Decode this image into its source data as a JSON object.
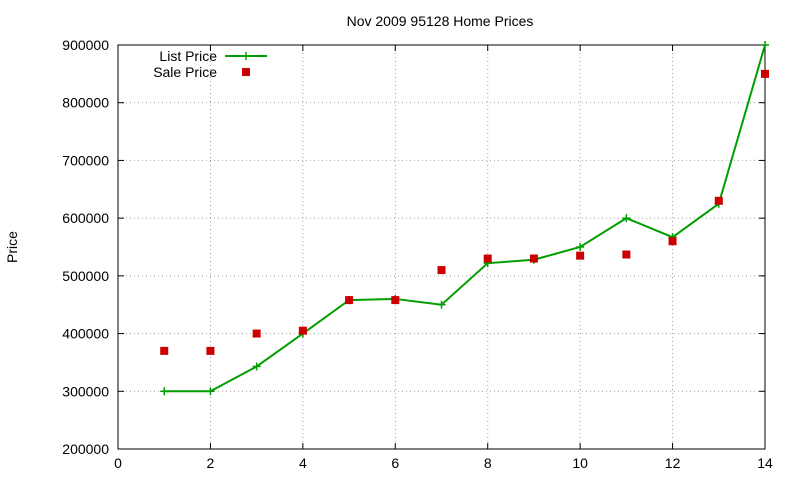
{
  "chart_data": {
    "type": "line",
    "title": "Nov 2009 95128 Home Prices",
    "xlabel": "",
    "ylabel": "Price",
    "xlim": [
      0,
      14
    ],
    "ylim": [
      200000,
      900000
    ],
    "xticks": [
      0,
      2,
      4,
      6,
      8,
      10,
      12,
      14
    ],
    "yticks": [
      200000,
      300000,
      400000,
      500000,
      600000,
      700000,
      800000,
      900000
    ],
    "grid": true,
    "legend_position": "top-left",
    "series": [
      {
        "name": "List Price",
        "style": "line-with-plus-markers",
        "color": "#009e00",
        "x": [
          1,
          2,
          3,
          4,
          5,
          6,
          7,
          8,
          9,
          10,
          11,
          12,
          13,
          14
        ],
        "y": [
          300000,
          300000,
          343000,
          400000,
          458000,
          460000,
          450000,
          522000,
          528000,
          550000,
          600000,
          567000,
          625000,
          900000
        ]
      },
      {
        "name": "Sale Price",
        "style": "square-markers",
        "color": "#cc0000",
        "x": [
          1,
          2,
          3,
          4,
          5,
          6,
          7,
          8,
          9,
          10,
          11,
          12,
          13,
          14
        ],
        "y": [
          370000,
          370000,
          400000,
          405000,
          458000,
          458000,
          510000,
          530000,
          530000,
          535000,
          537000,
          560000,
          630000,
          850000
        ]
      }
    ]
  }
}
